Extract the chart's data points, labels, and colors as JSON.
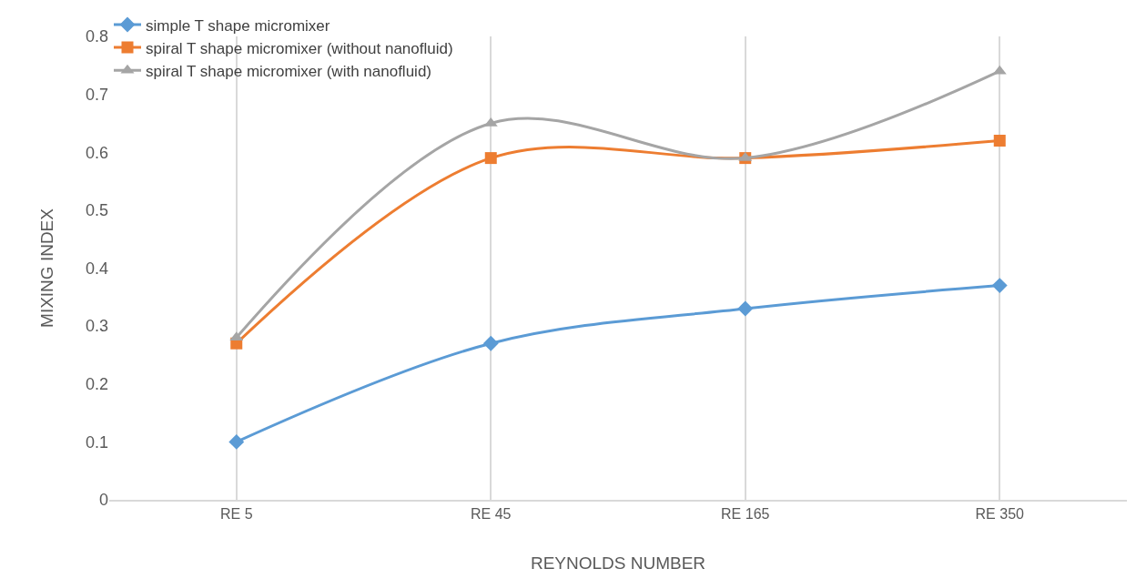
{
  "chart_data": {
    "type": "line",
    "xlabel": "REYNOLDS NUMBER",
    "ylabel": "MIXING INDEX",
    "categories": [
      "RE 5",
      "RE 45",
      "RE 165",
      "RE 350"
    ],
    "series": [
      {
        "name": "simple T shape micromixer",
        "color": "#5b9bd5",
        "marker": "diamond",
        "values": [
          0.1,
          0.27,
          0.33,
          0.37
        ]
      },
      {
        "name": "spiral T shape micromixer (without nanofluid)",
        "color": "#ed7d31",
        "marker": "square",
        "values": [
          0.27,
          0.59,
          0.59,
          0.62
        ]
      },
      {
        "name": "spiral T shape micromixer (with nanofluid)",
        "color": "#a5a5a5",
        "marker": "triangle",
        "values": [
          0.28,
          0.65,
          0.59,
          0.74
        ]
      }
    ],
    "ylim": [
      0,
      0.8
    ],
    "yticks": [
      0,
      0.1,
      0.2,
      0.3,
      0.4,
      0.5,
      0.6,
      0.7,
      0.8
    ],
    "grid": "x",
    "legend": "top left",
    "line_style": "solid"
  }
}
